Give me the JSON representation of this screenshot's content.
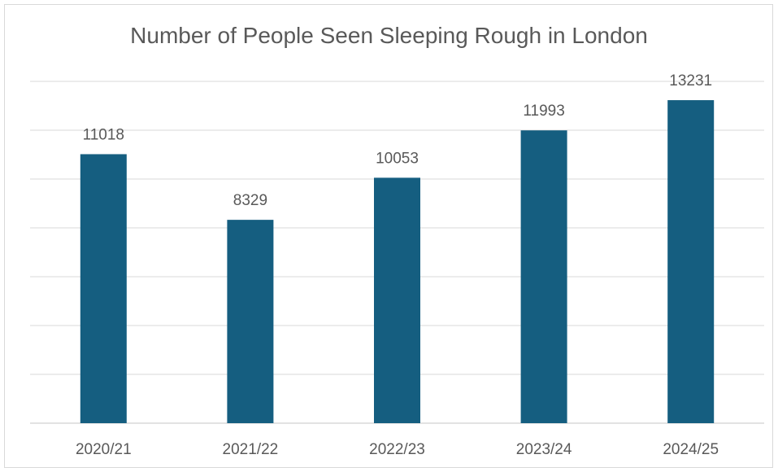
{
  "chart_data": {
    "type": "bar",
    "title": "Number of People Seen Sleeping Rough in London",
    "categories": [
      "2020/21",
      "2021/22",
      "2022/23",
      "2023/24",
      "2024/25"
    ],
    "values": [
      11018,
      8329,
      10053,
      11993,
      13231
    ],
    "data_labels": [
      "11018",
      "8329",
      "10053",
      "11993",
      "13231"
    ],
    "xlabel": "",
    "ylabel": "",
    "ylim": [
      0,
      14000
    ],
    "y_gridline_step": 2000,
    "y_tick_labels_shown": false,
    "grid": true,
    "legend": "none",
    "colors": {
      "bar": "#155e80",
      "grid": "#d9d9d9",
      "text": "#595959"
    }
  }
}
